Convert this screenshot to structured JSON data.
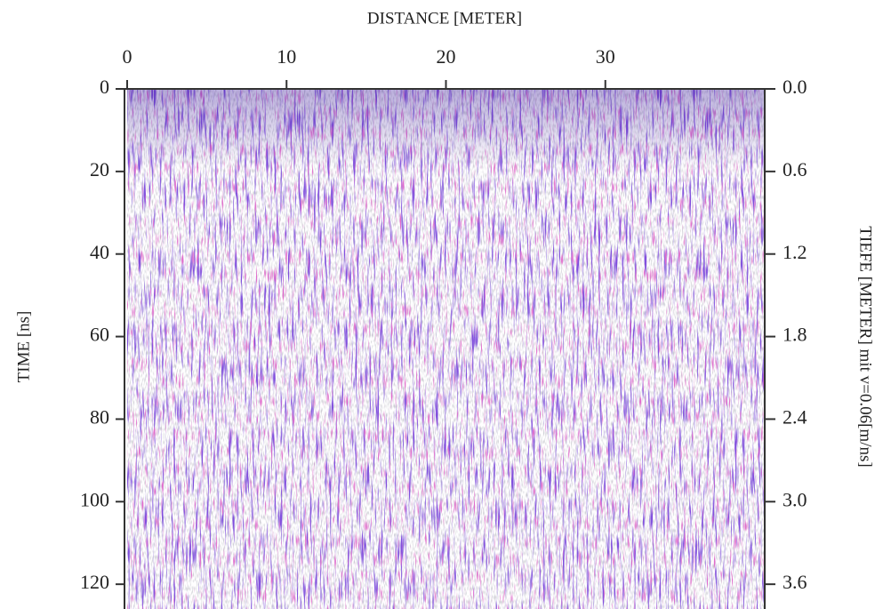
{
  "chart_data": {
    "type": "radargram",
    "xlabel": "DISTANCE [METER]",
    "ylabel": "TIME [ns]",
    "y2label": "TIEFE [METER] mit v=0.06[m/ns]",
    "xlim": [
      0,
      40
    ],
    "xticks": [
      0,
      10,
      20,
      30
    ],
    "ylim": [
      0,
      126
    ],
    "yticks": [
      0,
      20,
      40,
      60,
      80,
      100,
      120
    ],
    "y2lim": [
      0,
      3.78
    ],
    "y2ticks": [
      {
        "value": 0,
        "label": "0.0"
      },
      0.6,
      1.2,
      1.8,
      2.4,
      {
        "value": 3,
        "label": "3.0"
      },
      3.6
    ]
  }
}
